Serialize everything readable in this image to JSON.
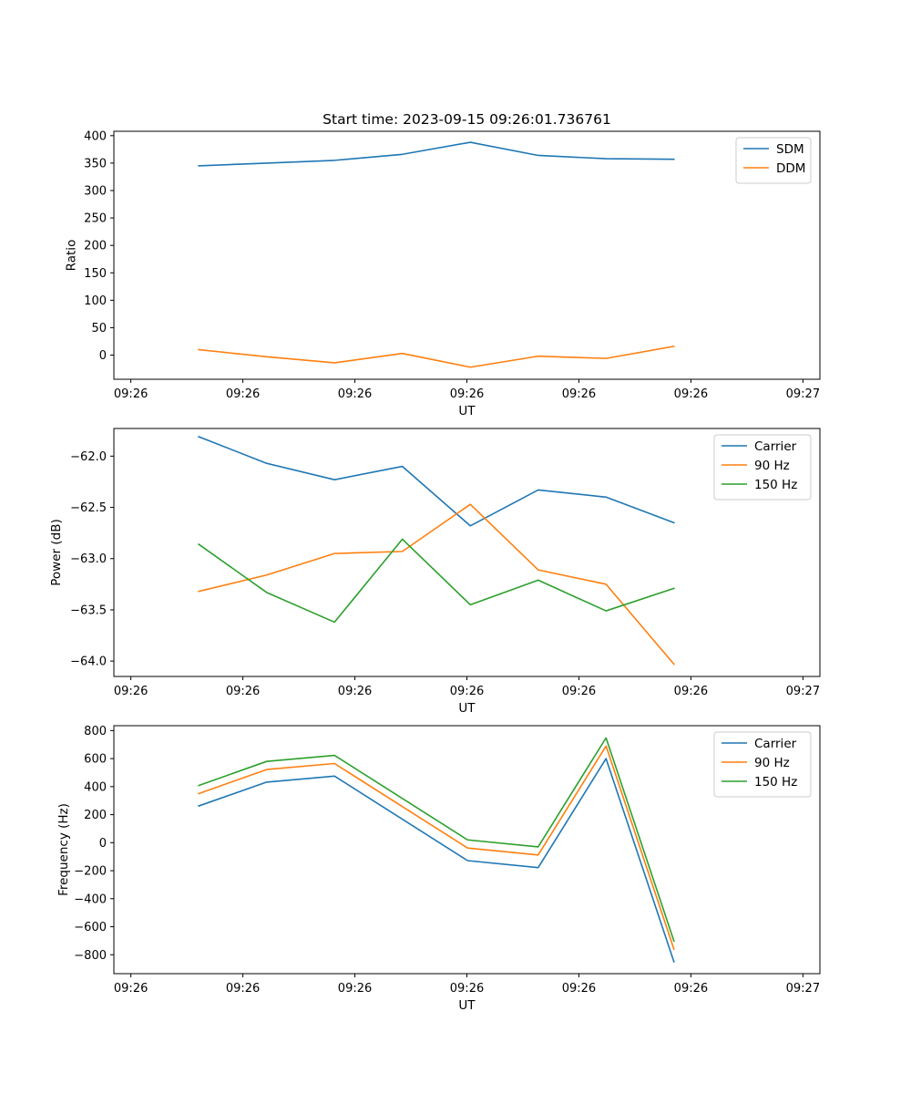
{
  "figure": {
    "title": "Start time: 2023-09-15 09:26:01.736761"
  },
  "colors": {
    "blue": "#1f77b4",
    "orange": "#ff7f0e",
    "green": "#2ca02c"
  },
  "chart_data": [
    {
      "type": "line",
      "name": "ratio",
      "title": "Start time: 2023-09-15 09:26:01.736761",
      "xlabel": "UT",
      "ylabel": "Ratio",
      "x": [
        1.0,
        2.0,
        3.0,
        4.0,
        5.0,
        6.0,
        7.0,
        8.0
      ],
      "x_tick_positions": [
        0,
        1.65,
        3.3,
        4.95,
        6.6,
        8.25,
        9.9
      ],
      "x_tick_labels": [
        "09:26",
        "09:26",
        "09:26",
        "09:26",
        "09:26",
        "09:26",
        "09:27"
      ],
      "xlim": [
        -0.25,
        10.15
      ],
      "ylim": [
        -44,
        408
      ],
      "y_ticks": [
        0,
        50,
        100,
        150,
        200,
        250,
        300,
        350,
        400
      ],
      "y_tick_labels": [
        "0",
        "50",
        "100",
        "150",
        "200",
        "250",
        "300",
        "350",
        "400"
      ],
      "legend_position": "top-right",
      "series": [
        {
          "name": "SDM",
          "color": "#1f77b4",
          "values": [
            345,
            350,
            355,
            366,
            388,
            364,
            358,
            357
          ]
        },
        {
          "name": "DDM",
          "color": "#ff7f0e",
          "values": [
            10,
            -3,
            -14,
            3,
            -22,
            -2,
            -6,
            16
          ]
        }
      ]
    },
    {
      "type": "line",
      "name": "power",
      "xlabel": "UT",
      "ylabel": "Power (dB)",
      "x": [
        1.0,
        2.0,
        3.0,
        4.0,
        5.0,
        6.0,
        7.0,
        8.0
      ],
      "x_tick_positions": [
        0,
        1.65,
        3.3,
        4.95,
        6.6,
        8.25,
        9.9
      ],
      "x_tick_labels": [
        "09:26",
        "09:26",
        "09:26",
        "09:26",
        "09:26",
        "09:26",
        "09:27"
      ],
      "xlim": [
        -0.25,
        10.15
      ],
      "ylim": [
        -64.15,
        -61.73
      ],
      "y_ticks": [
        -64.0,
        -63.5,
        -63.0,
        -62.5,
        -62.0
      ],
      "y_tick_labels": [
        "−64.0",
        "−63.5",
        "−63.0",
        "−62.5",
        "−62.0"
      ],
      "legend_position": "top-right",
      "series": [
        {
          "name": "Carrier",
          "color": "#1f77b4",
          "values": [
            -61.81,
            -62.07,
            -62.23,
            -62.1,
            -62.68,
            -62.33,
            -62.4,
            -62.65
          ]
        },
        {
          "name": "90 Hz",
          "color": "#ff7f0e",
          "values": [
            -63.32,
            -63.16,
            -62.95,
            -62.93,
            -62.47,
            -63.11,
            -63.25,
            -64.03
          ]
        },
        {
          "name": "150 Hz",
          "color": "#2ca02c",
          "values": [
            -62.86,
            -63.33,
            -63.62,
            -62.81,
            -63.45,
            -63.21,
            -63.51,
            -63.29
          ]
        }
      ]
    },
    {
      "type": "line",
      "name": "frequency",
      "xlabel": "UT",
      "ylabel": "Frequency (Hz)",
      "x": [
        1.0,
        2.0,
        3.0,
        4.96,
        6.0,
        7.0,
        8.0
      ],
      "x_tick_positions": [
        0,
        1.65,
        3.3,
        4.95,
        6.6,
        8.25,
        9.9
      ],
      "x_tick_labels": [
        "09:26",
        "09:26",
        "09:26",
        "09:26",
        "09:26",
        "09:26",
        "09:27"
      ],
      "xlim": [
        -0.25,
        10.15
      ],
      "ylim": [
        -935,
        835
      ],
      "y_ticks": [
        -800,
        -600,
        -400,
        -200,
        0,
        200,
        400,
        600,
        800
      ],
      "y_tick_labels": [
        "−800",
        "−600",
        "−400",
        "−200",
        "0",
        "200",
        "400",
        "600",
        "800"
      ],
      "legend_position": "top-right",
      "series": [
        {
          "name": "Carrier",
          "color": "#1f77b4",
          "values": [
            262,
            432,
            475,
            -128,
            -178,
            600,
            -850
          ]
        },
        {
          "name": "90 Hz",
          "color": "#ff7f0e",
          "values": [
            350,
            522,
            565,
            -38,
            -88,
            690,
            -760
          ]
        },
        {
          "name": "150 Hz",
          "color": "#2ca02c",
          "values": [
            408,
            580,
            623,
            20,
            -30,
            748,
            -702
          ]
        }
      ]
    }
  ]
}
